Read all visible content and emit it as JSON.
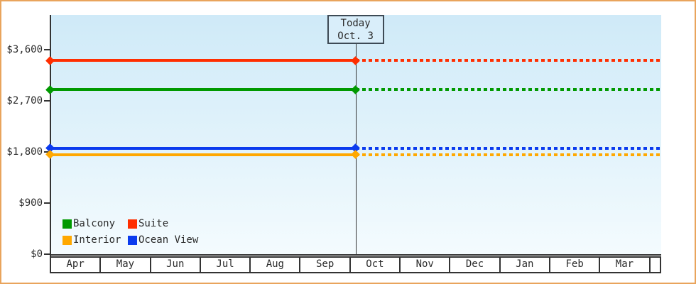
{
  "theme": {
    "outer_border": "#E9A45C",
    "plot_top": "#CFEAF8",
    "plot_bottom": "#F4FBFE",
    "axis": "#333333",
    "box_bg": "#D9EEFA",
    "cell_bg": "#FFFFFF"
  },
  "chart_data": {
    "type": "line",
    "title": "",
    "description": "Cabin price by month; solid history up to today, dotted projection after",
    "x_categories": [
      "Apr",
      "May",
      "Jun",
      "Jul",
      "Aug",
      "Sep",
      "Oct",
      "Nov",
      "Dec",
      "Jan",
      "Feb",
      "Mar"
    ],
    "y_tick_labels": [
      "$3,600",
      "$2,700",
      "$1,800",
      "$900",
      "$0"
    ],
    "y_tick_values": [
      3600,
      2700,
      1800,
      900,
      0
    ],
    "ylim": [
      0,
      4200
    ],
    "grid": false,
    "legend_position": "bottom-left",
    "today_marker": {
      "label_line1": "Today",
      "label_line2": "Oct. 3",
      "x_fraction": 0.499
    },
    "series": [
      {
        "name": "Balcony",
        "color": "#009900",
        "value": 2890,
        "line_style": "solid then dotted after today"
      },
      {
        "name": "Suite",
        "color": "#FF2E00",
        "value": 3400,
        "line_style": "solid then dotted after today"
      },
      {
        "name": "Interior",
        "color": "#FFA800",
        "value": 1750,
        "line_style": "solid then dotted after today"
      },
      {
        "name": "Ocean View",
        "color": "#0B3BEE",
        "value": 1860,
        "line_style": "solid then dotted after today"
      }
    ]
  }
}
